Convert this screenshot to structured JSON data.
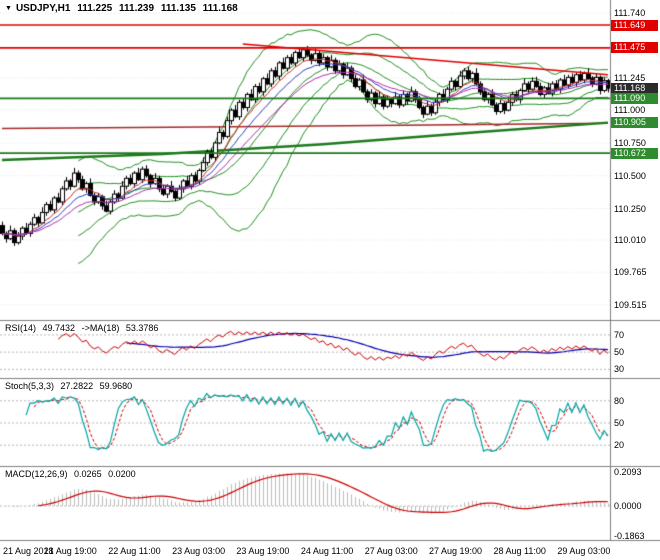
{
  "header": {
    "icon": "▼",
    "symbol_period": "USDJPY,H1",
    "open": "111.225",
    "high": "111.239",
    "low": "111.135",
    "close": "111.168"
  },
  "chart_data": {
    "type": "candlestick",
    "symbol": "USDJPY",
    "timeframe": "H1",
    "ylim": [
      109.4,
      111.84
    ],
    "y_ticks": [
      "111.740",
      "111.245",
      "111.000",
      "110.750",
      "110.500",
      "110.250",
      "110.010",
      "109.765",
      "109.515"
    ],
    "price_badges": [
      {
        "label": "111.649",
        "value": 111.649,
        "color": "#e00000"
      },
      {
        "label": "111.475",
        "value": 111.475,
        "color": "#e00000"
      },
      {
        "label": "111.168",
        "value": 111.168,
        "color": "#2b2b2b"
      },
      {
        "label": "111.090",
        "value": 111.09,
        "color": "#2e8b2e"
      },
      {
        "label": "110.905",
        "value": 110.905,
        "color": "#2e8b2e"
      },
      {
        "label": "110.672",
        "value": 110.672,
        "color": "#2e8b2e"
      }
    ],
    "x_labels": [
      {
        "bar": 1,
        "label": "21 Aug 2018"
      },
      {
        "bar": 17,
        "label": "21 Aug 19:00"
      },
      {
        "bar": 33,
        "label": "22 Aug 11:00"
      },
      {
        "bar": 49,
        "label": "23 Aug 03:00"
      },
      {
        "bar": 65,
        "label": "23 Aug 19:00"
      },
      {
        "bar": 81,
        "label": "24 Aug 11:00"
      },
      {
        "bar": 97,
        "label": "27 Aug 03:00"
      },
      {
        "bar": 113,
        "label": "27 Aug 19:00"
      },
      {
        "bar": 129,
        "label": "28 Aug 11:00"
      },
      {
        "bar": 145,
        "label": "29 Aug 03:00"
      }
    ],
    "candles": [
      [
        110.12,
        110.15,
        110.045,
        110.06
      ],
      [
        110.06,
        110.075,
        109.99,
        110.02
      ],
      [
        110.02,
        110.12,
        110.01,
        110.08
      ],
      [
        110.08,
        110.1,
        109.965,
        109.99
      ],
      [
        109.99,
        110.07,
        109.975,
        110.04
      ],
      [
        110.04,
        110.115,
        110.01,
        110.1
      ],
      [
        110.1,
        110.14,
        110.05,
        110.06
      ],
      [
        110.06,
        110.15,
        110.035,
        110.13
      ],
      [
        110.13,
        110.21,
        110.115,
        110.18
      ],
      [
        110.18,
        110.195,
        110.11,
        110.14
      ],
      [
        110.14,
        110.26,
        110.13,
        110.22
      ],
      [
        110.22,
        110.3,
        110.195,
        110.28
      ],
      [
        110.28,
        110.31,
        110.225,
        110.24
      ],
      [
        110.24,
        110.345,
        110.21,
        110.33
      ],
      [
        110.33,
        110.37,
        110.29,
        110.3
      ],
      [
        110.3,
        110.42,
        110.275,
        110.4
      ],
      [
        110.4,
        110.49,
        110.385,
        110.46
      ],
      [
        110.46,
        110.475,
        110.39,
        110.42
      ],
      [
        110.42,
        110.56,
        110.41,
        110.52
      ],
      [
        110.52,
        110.54,
        110.445,
        110.47
      ],
      [
        110.47,
        110.5,
        110.385,
        110.4
      ],
      [
        110.4,
        110.455,
        110.37,
        110.44
      ],
      [
        110.44,
        110.48,
        110.34,
        110.35
      ],
      [
        110.35,
        110.37,
        110.275,
        110.3
      ],
      [
        110.3,
        110.37,
        110.285,
        110.34
      ],
      [
        110.34,
        110.355,
        110.24,
        110.27
      ],
      [
        110.27,
        110.31,
        110.22,
        110.23
      ],
      [
        110.23,
        110.32,
        110.205,
        110.3
      ],
      [
        110.3,
        110.39,
        110.285,
        110.36
      ],
      [
        110.36,
        110.375,
        110.3,
        110.33
      ],
      [
        110.33,
        110.46,
        110.32,
        110.42
      ],
      [
        110.42,
        110.5,
        110.395,
        110.48
      ],
      [
        110.48,
        110.51,
        110.425,
        110.44
      ],
      [
        110.44,
        110.535,
        110.41,
        110.52
      ],
      [
        110.52,
        110.56,
        110.46,
        110.47
      ],
      [
        110.47,
        110.57,
        110.445,
        110.55
      ],
      [
        110.55,
        110.58,
        110.485,
        110.5
      ],
      [
        110.5,
        110.515,
        110.41,
        110.44
      ],
      [
        110.44,
        110.52,
        110.43,
        110.48
      ],
      [
        110.48,
        110.5,
        110.375,
        110.4
      ],
      [
        110.4,
        110.43,
        110.345,
        110.36
      ],
      [
        110.36,
        110.435,
        110.33,
        110.42
      ],
      [
        110.42,
        110.46,
        110.37,
        110.38
      ],
      [
        110.38,
        110.4,
        110.305,
        110.33
      ],
      [
        110.33,
        110.43,
        110.315,
        110.4
      ],
      [
        110.4,
        110.475,
        110.37,
        110.46
      ],
      [
        110.46,
        110.5,
        110.41,
        110.42
      ],
      [
        110.42,
        110.52,
        110.395,
        110.5
      ],
      [
        110.5,
        110.53,
        110.445,
        110.46
      ],
      [
        110.46,
        110.555,
        110.43,
        110.54
      ],
      [
        110.54,
        110.64,
        110.53,
        110.6
      ],
      [
        110.6,
        110.7,
        110.575,
        110.68
      ],
      [
        110.68,
        110.71,
        110.625,
        110.64
      ],
      [
        110.64,
        110.765,
        110.61,
        110.75
      ],
      [
        110.75,
        110.87,
        110.74,
        110.83
      ],
      [
        110.83,
        110.85,
        110.775,
        110.8
      ],
      [
        110.8,
        110.95,
        110.785,
        110.92
      ],
      [
        110.92,
        111.015,
        110.89,
        111.0
      ],
      [
        111.0,
        111.04,
        110.94,
        110.95
      ],
      [
        110.95,
        111.08,
        110.925,
        111.06
      ],
      [
        111.06,
        111.09,
        111.005,
        111.02
      ],
      [
        111.02,
        111.135,
        110.99,
        111.12
      ],
      [
        111.12,
        111.16,
        111.07,
        111.08
      ],
      [
        111.08,
        111.2,
        111.055,
        111.18
      ],
      [
        111.18,
        111.21,
        111.125,
        111.14
      ],
      [
        111.14,
        111.255,
        111.11,
        111.24
      ],
      [
        111.24,
        111.28,
        111.19,
        111.2
      ],
      [
        111.2,
        111.32,
        111.175,
        111.3
      ],
      [
        111.3,
        111.33,
        111.245,
        111.26
      ],
      [
        111.26,
        111.375,
        111.23,
        111.36
      ],
      [
        111.36,
        111.4,
        111.31,
        111.32
      ],
      [
        111.32,
        111.42,
        111.295,
        111.4
      ],
      [
        111.4,
        111.43,
        111.345,
        111.36
      ],
      [
        111.36,
        111.455,
        111.33,
        111.44
      ],
      [
        111.44,
        111.48,
        111.39,
        111.4
      ],
      [
        111.4,
        111.48,
        111.375,
        111.46
      ],
      [
        111.46,
        111.49,
        111.405,
        111.42
      ],
      [
        111.42,
        111.435,
        111.35,
        111.38
      ],
      [
        111.38,
        111.47,
        111.37,
        111.43
      ],
      [
        111.43,
        111.45,
        111.335,
        111.36
      ],
      [
        111.36,
        111.43,
        111.345,
        111.4
      ],
      [
        111.4,
        111.415,
        111.3,
        111.33
      ],
      [
        111.33,
        111.42,
        111.32,
        111.38
      ],
      [
        111.38,
        111.4,
        111.275,
        111.3
      ],
      [
        111.3,
        111.38,
        111.285,
        111.35
      ],
      [
        111.35,
        111.365,
        111.24,
        111.27
      ],
      [
        111.27,
        111.36,
        111.26,
        111.32
      ],
      [
        111.32,
        111.34,
        111.215,
        111.24
      ],
      [
        111.24,
        111.27,
        111.165,
        111.18
      ],
      [
        111.18,
        111.245,
        111.15,
        111.23
      ],
      [
        111.23,
        111.27,
        111.13,
        111.14
      ],
      [
        111.14,
        111.16,
        111.055,
        111.08
      ],
      [
        111.08,
        111.16,
        111.065,
        111.13
      ],
      [
        111.13,
        111.145,
        111.02,
        111.05
      ],
      [
        111.05,
        111.14,
        111.04,
        111.1
      ],
      [
        111.1,
        111.12,
        111.005,
        111.03
      ],
      [
        111.03,
        111.11,
        111.015,
        111.08
      ],
      [
        111.08,
        111.095,
        111.02,
        111.05
      ],
      [
        111.05,
        111.14,
        111.04,
        111.1
      ],
      [
        111.1,
        111.12,
        111.015,
        111.04
      ],
      [
        111.04,
        111.15,
        111.025,
        111.12
      ],
      [
        111.12,
        111.135,
        111.04,
        111.07
      ],
      [
        111.07,
        111.18,
        111.06,
        111.14
      ],
      [
        111.14,
        111.16,
        111.055,
        111.08
      ],
      [
        111.08,
        111.11,
        111.005,
        111.02
      ],
      [
        111.02,
        111.035,
        110.94,
        110.97
      ],
      [
        110.97,
        111.07,
        110.96,
        111.03
      ],
      [
        111.03,
        111.05,
        110.955,
        110.98
      ],
      [
        110.98,
        111.09,
        110.965,
        111.06
      ],
      [
        111.06,
        111.135,
        111.03,
        111.12
      ],
      [
        111.12,
        111.16,
        111.07,
        111.08
      ],
      [
        111.08,
        111.18,
        111.055,
        111.16
      ],
      [
        111.16,
        111.25,
        111.145,
        111.22
      ],
      [
        111.22,
        111.235,
        111.15,
        111.18
      ],
      [
        111.18,
        111.3,
        111.17,
        111.26
      ],
      [
        111.26,
        111.32,
        111.235,
        111.3
      ],
      [
        111.3,
        111.33,
        111.225,
        111.24
      ],
      [
        111.24,
        111.295,
        111.21,
        111.28
      ],
      [
        111.28,
        111.32,
        111.19,
        111.2
      ],
      [
        111.2,
        111.22,
        111.115,
        111.14
      ],
      [
        111.14,
        111.17,
        111.065,
        111.08
      ],
      [
        111.08,
        111.135,
        111.05,
        111.12
      ],
      [
        111.12,
        111.16,
        111.03,
        111.04
      ],
      [
        111.04,
        111.06,
        110.965,
        110.99
      ],
      [
        110.99,
        111.08,
        110.975,
        111.05
      ],
      [
        111.05,
        111.065,
        110.97,
        111.0
      ],
      [
        111.0,
        111.1,
        110.99,
        111.06
      ],
      [
        111.06,
        111.14,
        111.035,
        111.12
      ],
      [
        111.12,
        111.15,
        111.065,
        111.08
      ],
      [
        111.08,
        111.165,
        111.05,
        111.15
      ],
      [
        111.15,
        111.24,
        111.14,
        111.2
      ],
      [
        111.2,
        111.22,
        111.13,
        111.16
      ],
      [
        111.16,
        111.25,
        111.145,
        111.22
      ],
      [
        111.22,
        111.255,
        111.17,
        111.18
      ],
      [
        111.18,
        111.21,
        111.105,
        111.12
      ],
      [
        111.12,
        111.185,
        111.09,
        111.17
      ],
      [
        111.17,
        111.21,
        111.12,
        111.13
      ],
      [
        111.13,
        111.22,
        111.105,
        111.2
      ],
      [
        111.2,
        111.23,
        111.145,
        111.16
      ],
      [
        111.16,
        111.245,
        111.13,
        111.23
      ],
      [
        111.23,
        111.27,
        111.18,
        111.19
      ],
      [
        111.19,
        111.27,
        111.165,
        111.25
      ],
      [
        111.25,
        111.28,
        111.195,
        111.21
      ],
      [
        111.21,
        111.285,
        111.18,
        111.27
      ],
      [
        111.27,
        111.3,
        111.22,
        111.23
      ],
      [
        111.23,
        111.295,
        111.205,
        111.28
      ],
      [
        111.28,
        111.32,
        111.23,
        111.24
      ],
      [
        111.24,
        111.26,
        111.175,
        111.2
      ],
      [
        111.2,
        111.28,
        111.19,
        111.25
      ],
      [
        111.25,
        111.265,
        111.12,
        111.15
      ],
      [
        111.15,
        111.25,
        111.135,
        111.225
      ],
      [
        111.225,
        111.239,
        111.135,
        111.168
      ]
    ],
    "overlays": {
      "bollinger": [
        {
          "period": 20,
          "deviation": 2.4,
          "color": "#209020",
          "middle": true
        },
        {
          "period": 20,
          "deviation": 1.1,
          "color": "#209020",
          "middle": false
        }
      ],
      "emas": [
        {
          "period": 8,
          "color": "#d03030"
        },
        {
          "period": 13,
          "color": "#3040c0"
        },
        {
          "period": 21,
          "color": "#b030b0"
        }
      ],
      "slow_lines": [
        {
          "points": [
            [
              0,
              110.86
            ],
            [
              50,
              110.872
            ],
            [
              100,
              110.885
            ],
            [
              151,
              110.9
            ]
          ],
          "color": "#a52a2a",
          "width": 1.6
        },
        {
          "points": [
            [
              0,
              110.62
            ],
            [
              40,
              110.665
            ],
            [
              80,
              110.74
            ],
            [
              120,
              110.835
            ],
            [
              151,
              110.905
            ]
          ],
          "color": "#1e7a1e",
          "width": 2.5
        }
      ],
      "horizontal_lines": [
        {
          "value": 111.649,
          "color": "#e00000",
          "width": 1.6
        },
        {
          "value": 111.475,
          "color": "#e00000",
          "width": 1.6
        },
        {
          "value": 111.09,
          "color": "#1e7a1e",
          "width": 1.8
        },
        {
          "value": 110.672,
          "color": "#1e7a1e",
          "width": 1.8
        }
      ],
      "trend_lines": [
        {
          "points": [
            [
              60,
              111.505
            ],
            [
              151,
              111.27
            ]
          ],
          "color": "#e00000",
          "width": 1.6
        }
      ]
    },
    "indicators": {
      "rsi": {
        "title": "RSI(14)",
        "value": "49.7432",
        "ma_title": "->MA(18)",
        "ma_value": "53.3786",
        "period": 14,
        "ma_period": 18,
        "levels": [
          70,
          50,
          30
        ],
        "ylim": [
          20,
          85
        ],
        "colors": {
          "main": "#cc0000",
          "ma": "#0000b0"
        }
      },
      "stochastic": {
        "title": "Stoch(5,3,3)",
        "value": "27.2822",
        "signal_value": "59.9680",
        "k_period": 5,
        "slowing": 3,
        "d_period": 3,
        "levels": [
          80,
          50,
          20
        ],
        "ylim": [
          -8,
          108
        ],
        "colors": {
          "main": "#00a5a5",
          "signal": "#cc0000"
        }
      },
      "macd": {
        "title": "MACD(12,26,9)",
        "value": "0.0265",
        "signal_value": "0.0200",
        "fast": 12,
        "slow": 26,
        "signal": 9,
        "ticks": [
          {
            "label": "0.2093",
            "value": 0.2093
          },
          {
            "label": "0.0000",
            "value": 0
          },
          {
            "label": "-0.1863",
            "value": -0.1863
          }
        ],
        "ylim": [
          -0.21,
          0.235
        ],
        "colors": {
          "hist": "#bdbdbd",
          "signal": "#cc0000"
        }
      }
    }
  }
}
